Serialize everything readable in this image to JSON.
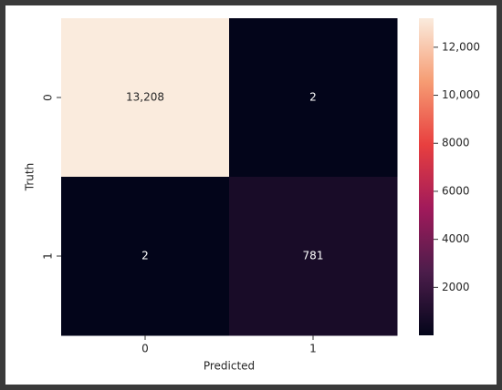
{
  "chart_data": {
    "type": "heatmap",
    "x_categories": [
      "0",
      "1"
    ],
    "y_categories": [
      "0",
      "1"
    ],
    "values": [
      [
        13208,
        2
      ],
      [
        2,
        781
      ]
    ],
    "value_labels": [
      [
        "13,208",
        "2"
      ],
      [
        "2",
        "781"
      ]
    ],
    "xlabel": "Predicted",
    "ylabel": "Truth",
    "clim": [
      2,
      13208
    ],
    "cticks": [
      2000,
      4000,
      6000,
      8000,
      {
        "value": 10000,
        "label": "10,000"
      },
      {
        "value": 12000,
        "label": "12,000"
      }
    ]
  }
}
